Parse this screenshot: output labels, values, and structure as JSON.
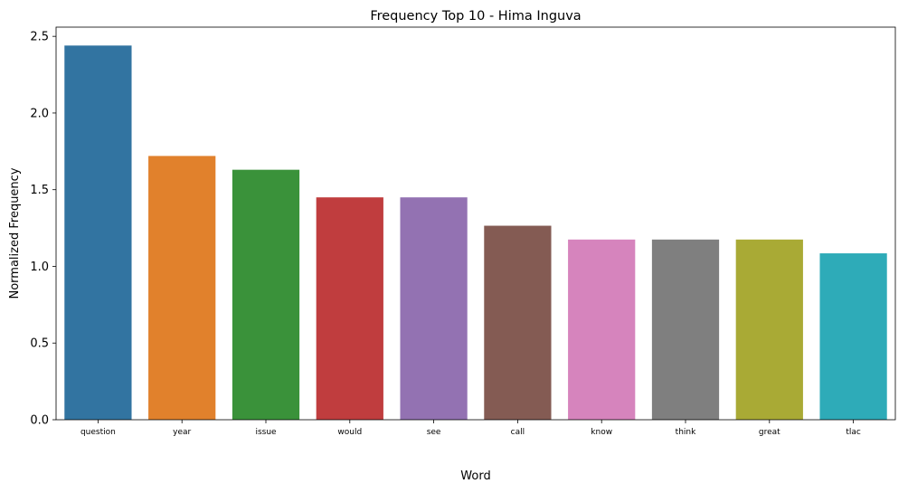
{
  "chart_data": {
    "type": "bar",
    "title": "Frequency Top 10 - Hima Inguva",
    "xlabel": "Word",
    "ylabel": "Normalized Frequency",
    "categories": [
      "question",
      "year",
      "issue",
      "would",
      "see",
      "call",
      "know",
      "think",
      "great",
      "tlac"
    ],
    "values": [
      2.44,
      1.72,
      1.63,
      1.45,
      1.45,
      1.265,
      1.175,
      1.175,
      1.175,
      1.085
    ],
    "colors": [
      "#3274a1",
      "#e1812c",
      "#3a923a",
      "#c03d3e",
      "#9372b2",
      "#845b53",
      "#d684bd",
      "#7f7f7f",
      "#a9aa35",
      "#2eabb8"
    ],
    "ylim": [
      0,
      2.56
    ],
    "yticks": [
      0.0,
      0.5,
      1.0,
      1.5,
      2.0,
      2.5
    ],
    "ytick_labels": [
      "0.0",
      "0.5",
      "1.0",
      "1.5",
      "2.0",
      "2.5"
    ],
    "grid": false,
    "legend": "none"
  }
}
